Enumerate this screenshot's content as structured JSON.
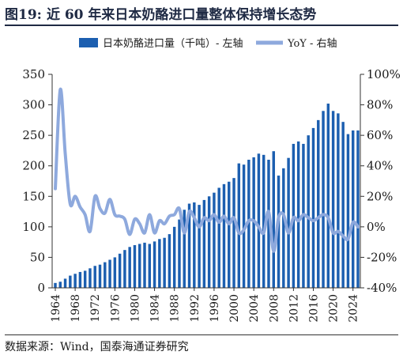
{
  "figure": {
    "number": "图19:",
    "title": "近 60 年来日本奶酪进口量整体保持增长态势"
  },
  "source": "数据来源：Wind，国泰海通证券研究",
  "colors": {
    "bar": "#1c5fb0",
    "line": "#8ea9dd",
    "title": "#1f2a44"
  },
  "chart_data": {
    "type": "bar",
    "legend_position": "top",
    "grid": false,
    "x": [
      1964,
      1965,
      1966,
      1967,
      1968,
      1969,
      1970,
      1971,
      1972,
      1973,
      1974,
      1975,
      1976,
      1977,
      1978,
      1979,
      1980,
      1981,
      1982,
      1983,
      1984,
      1985,
      1986,
      1987,
      1988,
      1989,
      1990,
      1991,
      1992,
      1993,
      1994,
      1995,
      1996,
      1997,
      1998,
      1999,
      2000,
      2001,
      2002,
      2003,
      2004,
      2005,
      2006,
      2007,
      2008,
      2009,
      2010,
      2011,
      2012,
      2013,
      2014,
      2015,
      2016,
      2017,
      2018,
      2019,
      2020,
      2021,
      2022,
      2023,
      2024,
      2025
    ],
    "x_ticks": [
      "1964",
      "1968",
      "1972",
      "1976",
      "1980",
      "1984",
      "1988",
      "1992",
      "1996",
      "2000",
      "2004",
      "2008",
      "2012",
      "2016",
      "2020",
      "2024"
    ],
    "series": [
      {
        "name": "日本奶酪进口量（千吨）- 左轴",
        "type": "bar",
        "axis": "left",
        "values": [
          8,
          10,
          15,
          20,
          23,
          26,
          28,
          32,
          36,
          38,
          42,
          46,
          50,
          56,
          62,
          67,
          70,
          72,
          74,
          72,
          76,
          80,
          82,
          88,
          100,
          112,
          128,
          138,
          140,
          136,
          144,
          150,
          156,
          164,
          170,
          174,
          180,
          204,
          202,
          210,
          214,
          220,
          218,
          210,
          224,
          184,
          196,
          213,
          236,
          240,
          236,
          250,
          262,
          275,
          290,
          302,
          290,
          286,
          272,
          252,
          258,
          258
        ]
      },
      {
        "name": "YoY - 右轴",
        "type": "line",
        "axis": "right",
        "values": [
          25,
          90,
          48,
          15,
          20,
          13,
          8,
          -3,
          20,
          12,
          9,
          18,
          8,
          7,
          5,
          -5,
          5,
          2,
          -4,
          8,
          -4,
          4,
          2,
          7,
          8,
          12,
          -4,
          10,
          6,
          0,
          6,
          4,
          8,
          3,
          7,
          2,
          6,
          -4,
          -2,
          4,
          4,
          0,
          -4,
          10,
          -16,
          6,
          8,
          -4,
          6,
          4,
          8,
          6,
          4,
          6,
          8,
          6,
          -4,
          -3,
          -6,
          -8,
          3,
          0
        ]
      }
    ],
    "y_left": {
      "min": 0,
      "max": 350,
      "ticks": [
        "0",
        "50",
        "100",
        "150",
        "200",
        "250",
        "300",
        "350"
      ]
    },
    "y_right": {
      "min": -40,
      "max": 100,
      "ticks": [
        "-40%",
        "-20%",
        "0%",
        "20%",
        "40%",
        "60%",
        "80%",
        "100%"
      ]
    }
  }
}
